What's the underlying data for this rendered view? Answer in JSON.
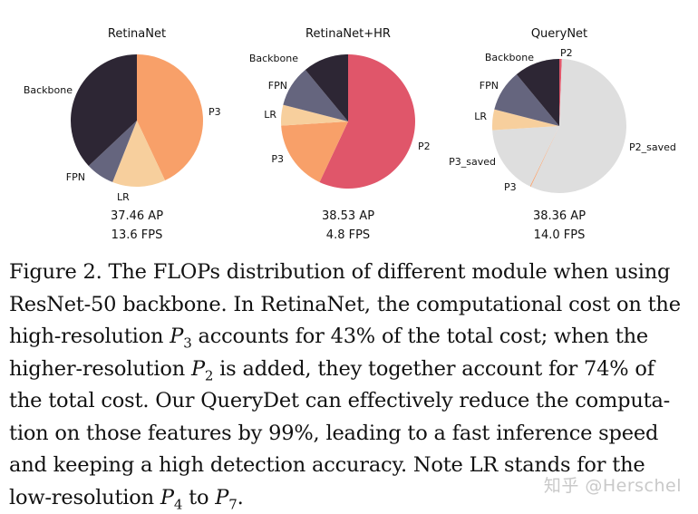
{
  "chart_data": [
    {
      "type": "pie",
      "title": "RetinaNet",
      "slices": [
        {
          "label": "P3",
          "value": 43,
          "color": "#f8a069"
        },
        {
          "label": "LR",
          "value": 13,
          "color": "#f7cf9d"
        },
        {
          "label": "FPN",
          "value": 7,
          "color": "#65657e"
        },
        {
          "label": "Backbone",
          "value": 37,
          "color": "#2d2634"
        }
      ],
      "stats": [
        "37.46 AP",
        "13.6 FPS"
      ]
    },
    {
      "type": "pie",
      "title": "RetinaNet+HR",
      "slices": [
        {
          "label": "P2",
          "value": 57,
          "color": "#e0566a"
        },
        {
          "label": "P3",
          "value": 17,
          "color": "#f8a069"
        },
        {
          "label": "LR",
          "value": 5,
          "color": "#f7cf9d"
        },
        {
          "label": "FPN",
          "value": 10,
          "color": "#65657e"
        },
        {
          "label": "Backbone",
          "value": 11,
          "color": "#2d2634"
        }
      ],
      "stats": [
        "38.53 AP",
        "4.8 FPS"
      ]
    },
    {
      "type": "pie",
      "title": "QueryNet",
      "slices": [
        {
          "label": "P2",
          "value": 0.6,
          "color": "#e0566a"
        },
        {
          "label": "P2_saved",
          "value": 56.4,
          "color": "#dedede"
        },
        {
          "label": "P3",
          "value": 0.2,
          "color": "#f8a069"
        },
        {
          "label": "P3_saved",
          "value": 16.8,
          "color": "#dedede"
        },
        {
          "label": "LR",
          "value": 5,
          "color": "#f7cf9d"
        },
        {
          "label": "FPN",
          "value": 10,
          "color": "#65657e"
        },
        {
          "label": "Backbone",
          "value": 11,
          "color": "#2d2634"
        }
      ],
      "stats": [
        "38.36 AP",
        "14.0 FPS"
      ]
    }
  ],
  "caption": {
    "lines": [
      [
        "Figure 2. The FLOPs distribution of different module when using"
      ],
      [
        "ResNet-50 backbone. In RetinaNet, the computational cost on the"
      ],
      [
        "high-resolution ",
        {
          "v": "P",
          "sub": "3"
        },
        " accounts for 43% of the total cost; when the"
      ],
      [
        "higher-resolution ",
        {
          "v": "P",
          "sub": "2"
        },
        " is added, they together account for 74% of"
      ],
      [
        "the total cost. Our QueryDet can effectively reduce the computa-"
      ],
      [
        "tion on those features by 99%, leading to a fast inference speed"
      ],
      [
        "and keeping a high detection accuracy. Note LR stands for the"
      ],
      [
        "low-resolution ",
        {
          "v": "P",
          "sub": "4"
        },
        " to ",
        {
          "v": "P",
          "sub": "7"
        },
        "."
      ]
    ]
  },
  "watermark": "知乎 @Herschel"
}
